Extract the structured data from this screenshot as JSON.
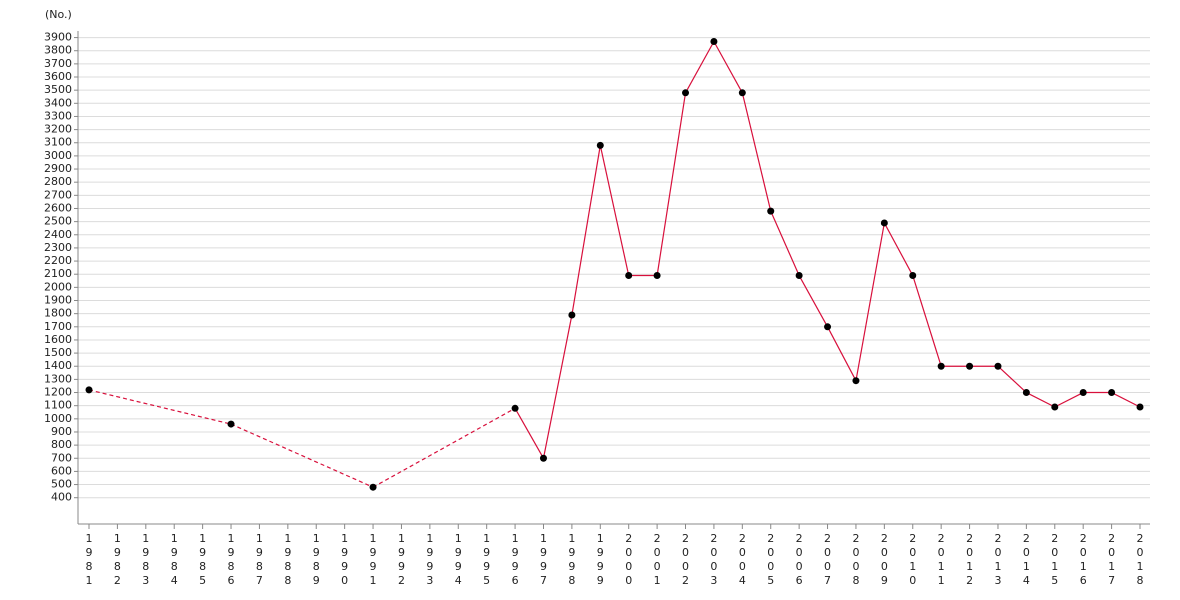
{
  "chart_data": {
    "type": "line",
    "y_label": "(No.)",
    "categories": [
      "1981",
      "1982",
      "1983",
      "1984",
      "1985",
      "1986",
      "1987",
      "1988",
      "1989",
      "1990",
      "1991",
      "1992",
      "1993",
      "1994",
      "1995",
      "1996",
      "1997",
      "1998",
      "1999",
      "2000",
      "2001",
      "2002",
      "2003",
      "2004",
      "2005",
      "2006",
      "2007",
      "2008",
      "2009",
      "2010",
      "2011",
      "2012",
      "2013",
      "2014",
      "2015",
      "2016",
      "2017",
      "2018"
    ],
    "values": [
      1220,
      null,
      null,
      null,
      null,
      960,
      null,
      null,
      null,
      null,
      480,
      null,
      null,
      null,
      null,
      1080,
      700,
      1790,
      3080,
      2090,
      2090,
      3480,
      3870,
      3480,
      2580,
      2090,
      1700,
      1290,
      2490,
      2090,
      1400,
      1400,
      1400,
      1200,
      1090,
      1200,
      1200,
      1090
    ],
    "color": "#d8103c",
    "marker_color": "#000000",
    "ylim": [
      200,
      3950
    ],
    "yticks": [
      400,
      500,
      600,
      700,
      800,
      900,
      1000,
      1100,
      1200,
      1300,
      1400,
      1500,
      1600,
      1700,
      1800,
      1900,
      2000,
      2100,
      2200,
      2300,
      2400,
      2500,
      2600,
      2700,
      2800,
      2900,
      3000,
      3100,
      3200,
      3300,
      3400,
      3500,
      3600,
      3700,
      3800,
      3900
    ],
    "grid": true
  }
}
